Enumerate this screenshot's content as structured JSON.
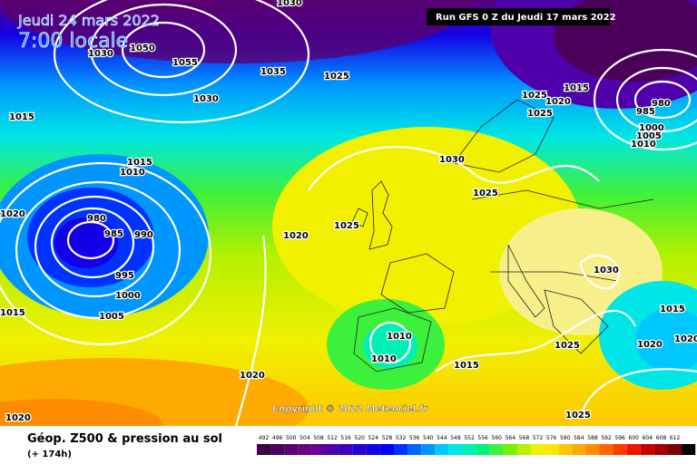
{
  "header": {
    "date": "Jeudi 24 mars 2022",
    "time": "7:00 locale",
    "run": "Run GFS 0 Z du Jeudi 17 mars 2022"
  },
  "copyright": "Copyright © 2022 Meteociel.fr",
  "legend": {
    "title": "Géop. Z500 & pression au sol",
    "subtitle": "(+ 174h)",
    "scale": [
      {
        "label": 492,
        "color": "#3c0046"
      },
      {
        "label": 496,
        "color": "#4b005a"
      },
      {
        "label": 500,
        "color": "#5a006e"
      },
      {
        "label": 504,
        "color": "#690082"
      },
      {
        "label": 508,
        "color": "#640096"
      },
      {
        "label": 512,
        "color": "#5000aa"
      },
      {
        "label": 516,
        "color": "#3c00be"
      },
      {
        "label": 520,
        "color": "#2800d2"
      },
      {
        "label": 524,
        "color": "#1400e6"
      },
      {
        "label": 528,
        "color": "#0000fa"
      },
      {
        "label": 532,
        "color": "#0032ff"
      },
      {
        "label": 536,
        "color": "#0064ff"
      },
      {
        "label": 540,
        "color": "#0096ff"
      },
      {
        "label": 544,
        "color": "#00c8ff"
      },
      {
        "label": 548,
        "color": "#00e6e6"
      },
      {
        "label": 552,
        "color": "#00f0b4"
      },
      {
        "label": 556,
        "color": "#00f078"
      },
      {
        "label": 560,
        "color": "#3cf03c"
      },
      {
        "label": 564,
        "color": "#78f000"
      },
      {
        "label": 568,
        "color": "#b4f000"
      },
      {
        "label": 572,
        "color": "#f0f000"
      },
      {
        "label": 576,
        "color": "#ffe600"
      },
      {
        "label": 580,
        "color": "#ffc800"
      },
      {
        "label": 584,
        "color": "#ffaa00"
      },
      {
        "label": 588,
        "color": "#ff8c00"
      },
      {
        "label": 592,
        "color": "#ff6400"
      },
      {
        "label": 596,
        "color": "#ff3c00"
      },
      {
        "label": 600,
        "color": "#f01400"
      },
      {
        "label": 604,
        "color": "#c80000"
      },
      {
        "label": 608,
        "color": "#a00000"
      },
      {
        "label": 612,
        "color": "#780000"
      }
    ]
  },
  "isobars": [
    "1030",
    "1050",
    "1030",
    "1055",
    "1035",
    "1025",
    "1030",
    "1015",
    "1015",
    "1010",
    "1020",
    "980",
    "985",
    "990",
    "995",
    "1000",
    "1005",
    "1015",
    "1020",
    "1025",
    "1030",
    "1025",
    "1025",
    "1020",
    "1025",
    "1015",
    "980",
    "985",
    "1000",
    "1005",
    "1010",
    "1030",
    "1015",
    "1020",
    "1020",
    "1025",
    "1010",
    "1010",
    "1015",
    "1020",
    "1025",
    "1020"
  ]
}
